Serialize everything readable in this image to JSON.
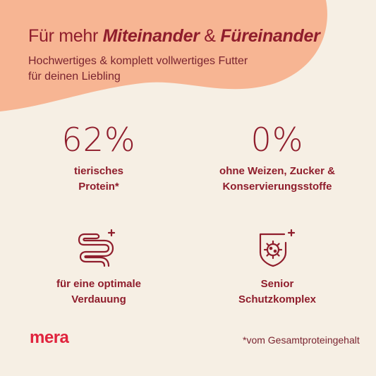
{
  "header": {
    "title_lead": "Für mehr ",
    "title_em1": "Miteinander",
    "title_amp": " & ",
    "title_em2": "Füreinander",
    "subtitle": "Hochwertiges & komplett vollwertiges Futter für deinen Liebling"
  },
  "features": [
    {
      "value": "62%",
      "label": "tierisches\nProtein*"
    },
    {
      "value": "0%",
      "label": "ohne Weizen, Zucker &\nKonservierungsstoffe"
    },
    {
      "icon": "intestine-plus-icon",
      "label": "für eine optimale\nVerdauung"
    },
    {
      "icon": "virus-shield-plus-icon",
      "label": "Senior\nSchutzkomplex"
    }
  ],
  "brand": {
    "logo": "mera"
  },
  "footnote": "*vom Gesamtproteingehalt",
  "colors": {
    "background": "#f6efe4",
    "blob": "#f7b593",
    "text": "#8f1d2c",
    "logo": "#e0233d"
  }
}
